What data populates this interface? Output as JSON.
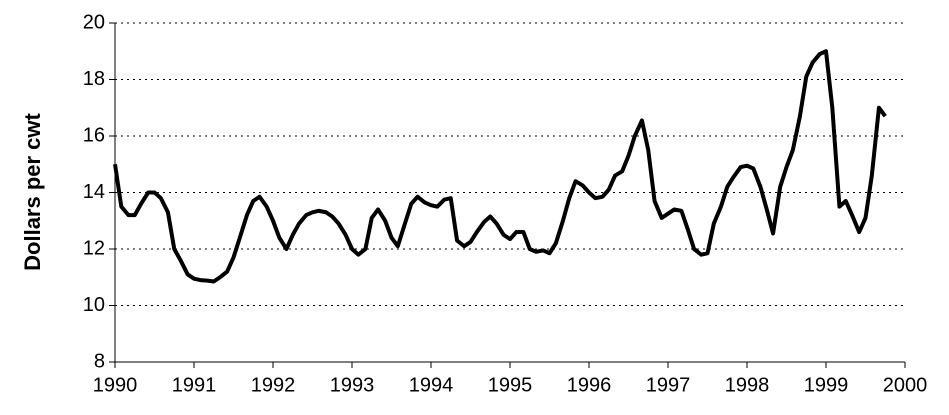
{
  "chart_data": {
    "type": "line",
    "y_label": "Dollars per cwt",
    "color": "#000000",
    "grid": true,
    "xlim": [
      1990,
      2000
    ],
    "xticks": [
      1990,
      1991,
      1992,
      1993,
      1994,
      1995,
      1996,
      1997,
      1998,
      1999,
      2000
    ],
    "ylim": [
      8,
      20
    ],
    "yticks": [
      8,
      10,
      12,
      14,
      16,
      18,
      20
    ],
    "x": [
      1990.0,
      1990.08,
      1990.17,
      1990.25,
      1990.33,
      1990.42,
      1990.5,
      1990.58,
      1990.67,
      1990.75,
      1990.83,
      1990.92,
      1991.0,
      1991.08,
      1991.17,
      1991.25,
      1991.33,
      1991.42,
      1991.5,
      1991.58,
      1991.67,
      1991.75,
      1991.83,
      1991.92,
      1992.0,
      1992.08,
      1992.17,
      1992.25,
      1992.33,
      1992.42,
      1992.5,
      1992.58,
      1992.67,
      1992.75,
      1992.83,
      1992.92,
      1993.0,
      1993.08,
      1993.17,
      1993.25,
      1993.33,
      1993.42,
      1993.5,
      1993.58,
      1993.67,
      1993.75,
      1993.83,
      1993.92,
      1994.0,
      1994.08,
      1994.17,
      1994.25,
      1994.33,
      1994.42,
      1994.5,
      1994.58,
      1994.67,
      1994.75,
      1994.83,
      1994.92,
      1995.0,
      1995.08,
      1995.17,
      1995.25,
      1995.33,
      1995.42,
      1995.5,
      1995.58,
      1995.67,
      1995.75,
      1995.83,
      1995.92,
      1996.0,
      1996.08,
      1996.17,
      1996.25,
      1996.33,
      1996.42,
      1996.5,
      1996.58,
      1996.67,
      1996.75,
      1996.83,
      1996.92,
      1997.0,
      1997.08,
      1997.17,
      1997.25,
      1997.33,
      1997.42,
      1997.5,
      1997.58,
      1997.67,
      1997.75,
      1997.83,
      1997.92,
      1998.0,
      1998.08,
      1998.17,
      1998.25,
      1998.33,
      1998.42,
      1998.5,
      1998.58,
      1998.67,
      1998.75,
      1998.83,
      1998.92,
      1999.0,
      1999.08,
      1999.17,
      1999.25,
      1999.33,
      1999.42,
      1999.5,
      1999.58,
      1999.67,
      1999.75
    ],
    "values": [
      15.0,
      13.5,
      13.2,
      13.2,
      13.6,
      14.0,
      14.0,
      13.8,
      13.3,
      12.0,
      11.6,
      11.1,
      10.95,
      10.9,
      10.88,
      10.85,
      11.0,
      11.2,
      11.7,
      12.4,
      13.2,
      13.7,
      13.85,
      13.5,
      13.0,
      12.4,
      12.0,
      12.5,
      12.9,
      13.2,
      13.3,
      13.35,
      13.3,
      13.15,
      12.9,
      12.5,
      12.0,
      11.8,
      12.0,
      13.1,
      13.4,
      13.0,
      12.4,
      12.1,
      12.9,
      13.6,
      13.85,
      13.65,
      13.55,
      13.5,
      13.75,
      13.8,
      12.3,
      12.1,
      12.25,
      12.6,
      12.95,
      13.15,
      12.9,
      12.5,
      12.35,
      12.6,
      12.6,
      12.0,
      11.9,
      11.95,
      11.85,
      12.2,
      13.0,
      13.8,
      14.4,
      14.25,
      14.0,
      13.8,
      13.85,
      14.1,
      14.6,
      14.75,
      15.3,
      16.0,
      16.55,
      15.5,
      13.7,
      13.1,
      13.25,
      13.4,
      13.35,
      12.7,
      12.0,
      11.8,
      11.85,
      12.9,
      13.5,
      14.2,
      14.55,
      14.9,
      14.95,
      14.85,
      14.2,
      13.4,
      12.55,
      14.2,
      14.9,
      15.5,
      16.7,
      18.1,
      18.6,
      18.9,
      19.0,
      17.0,
      13.5,
      13.7,
      13.2,
      12.6,
      13.1,
      14.6,
      17.0,
      16.7
    ]
  }
}
